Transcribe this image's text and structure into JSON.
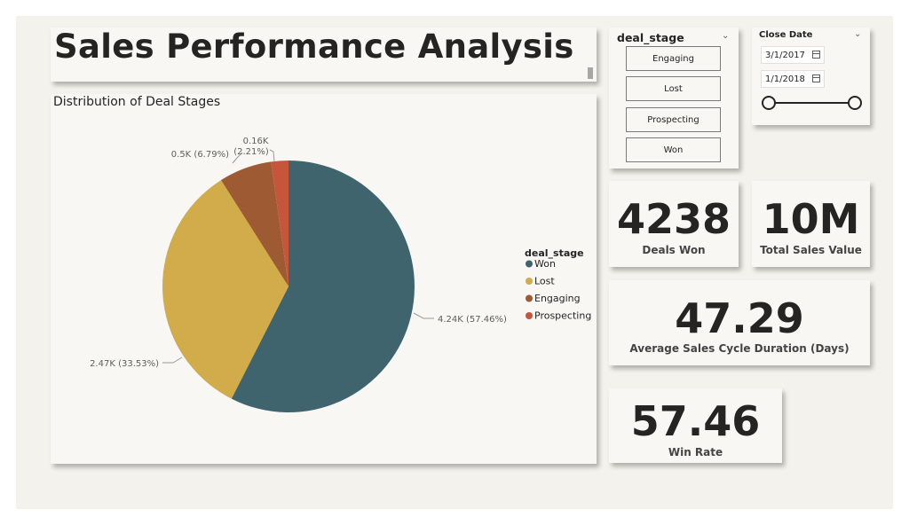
{
  "title": "Sales Performance Analysis",
  "pie": {
    "title": "Distribution of Deal Stages",
    "legend_title": "deal_stage"
  },
  "chart_data": {
    "type": "pie",
    "title": "Distribution of Deal Stages",
    "legend_title": "deal_stage",
    "legend_position": "right",
    "slices": [
      {
        "name": "Won",
        "value": 4238,
        "percent": 57.46,
        "label": "4.24K (57.46%)",
        "color": "#40646d"
      },
      {
        "name": "Lost",
        "value": 2473,
        "percent": 33.53,
        "label": "2.47K (33.53%)",
        "color": "#d2ab4a"
      },
      {
        "name": "Engaging",
        "value": 500,
        "percent": 6.79,
        "label": "0.5K (6.79%)",
        "color": "#9e5a33"
      },
      {
        "name": "Prospecting",
        "value": 163,
        "percent": 2.21,
        "label_line1": "0.16K",
        "label_line2": "(2.21%)",
        "color": "#c7553b"
      }
    ]
  },
  "slicer": {
    "header": "deal_stage",
    "options": [
      "Engaging",
      "Lost",
      "Prospecting",
      "Won"
    ]
  },
  "date_filter": {
    "header": "Close Date",
    "start": "3/1/2017",
    "end": "1/1/2018"
  },
  "kpis": {
    "deals_won": {
      "value": "4238",
      "label": "Deals Won"
    },
    "total_sales": {
      "value": "10M",
      "label": "Total Sales Value"
    },
    "cycle": {
      "value": "47.29",
      "label": "Average Sales Cycle Duration (Days)"
    },
    "win_rate": {
      "value": "57.46",
      "label": "Win Rate"
    }
  }
}
